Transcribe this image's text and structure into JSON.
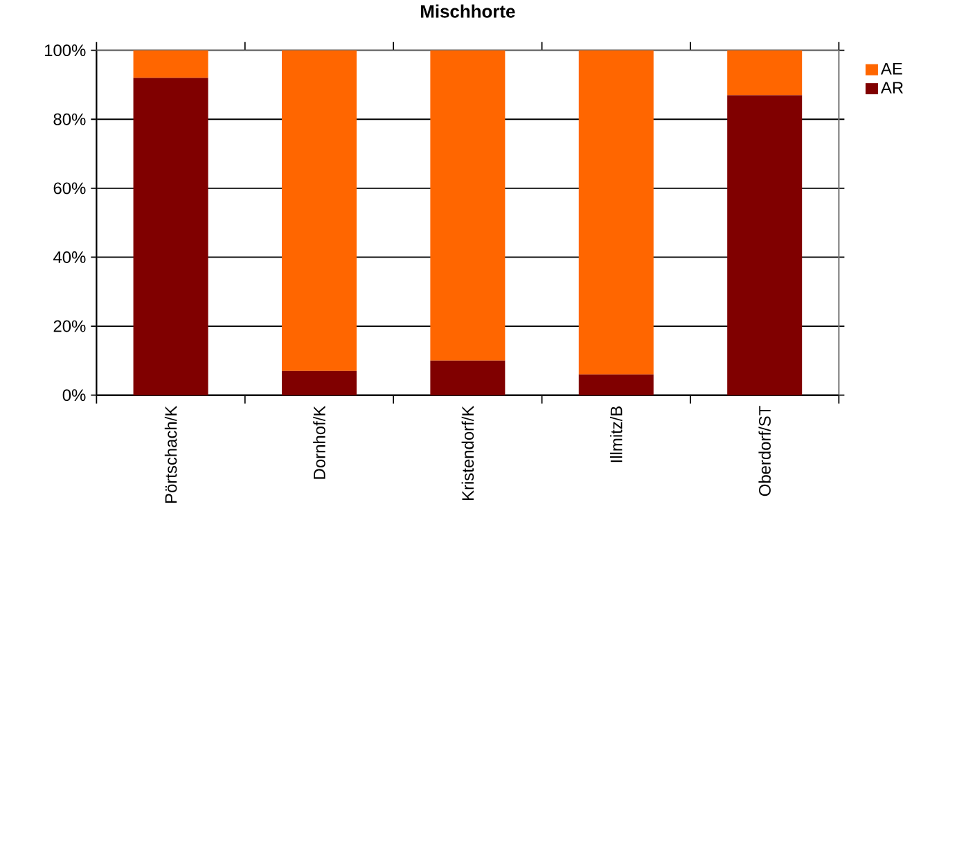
{
  "chart_data": {
    "type": "bar",
    "title": "Mischhorte",
    "categories": [
      "Pörtschach/K",
      "Dornhof/K",
      "Kristendorf/K",
      "Illmitz/B",
      "Oberdorf/ST"
    ],
    "stacked": true,
    "series": [
      {
        "name": "AR",
        "color": "#800000",
        "values": [
          92,
          7,
          10,
          6,
          87
        ]
      },
      {
        "name": "AE",
        "color": "#ff6600",
        "values": [
          8,
          93,
          90,
          94,
          13
        ]
      }
    ],
    "ylim": [
      0,
      100
    ],
    "yticks": [
      {
        "value": 0,
        "label": "0%"
      },
      {
        "value": 20,
        "label": "20%"
      },
      {
        "value": 40,
        "label": "40%"
      },
      {
        "value": 60,
        "label": "60%"
      },
      {
        "value": 80,
        "label": "80%"
      },
      {
        "value": 100,
        "label": "100%"
      }
    ],
    "grid": "y",
    "legend": "right"
  }
}
